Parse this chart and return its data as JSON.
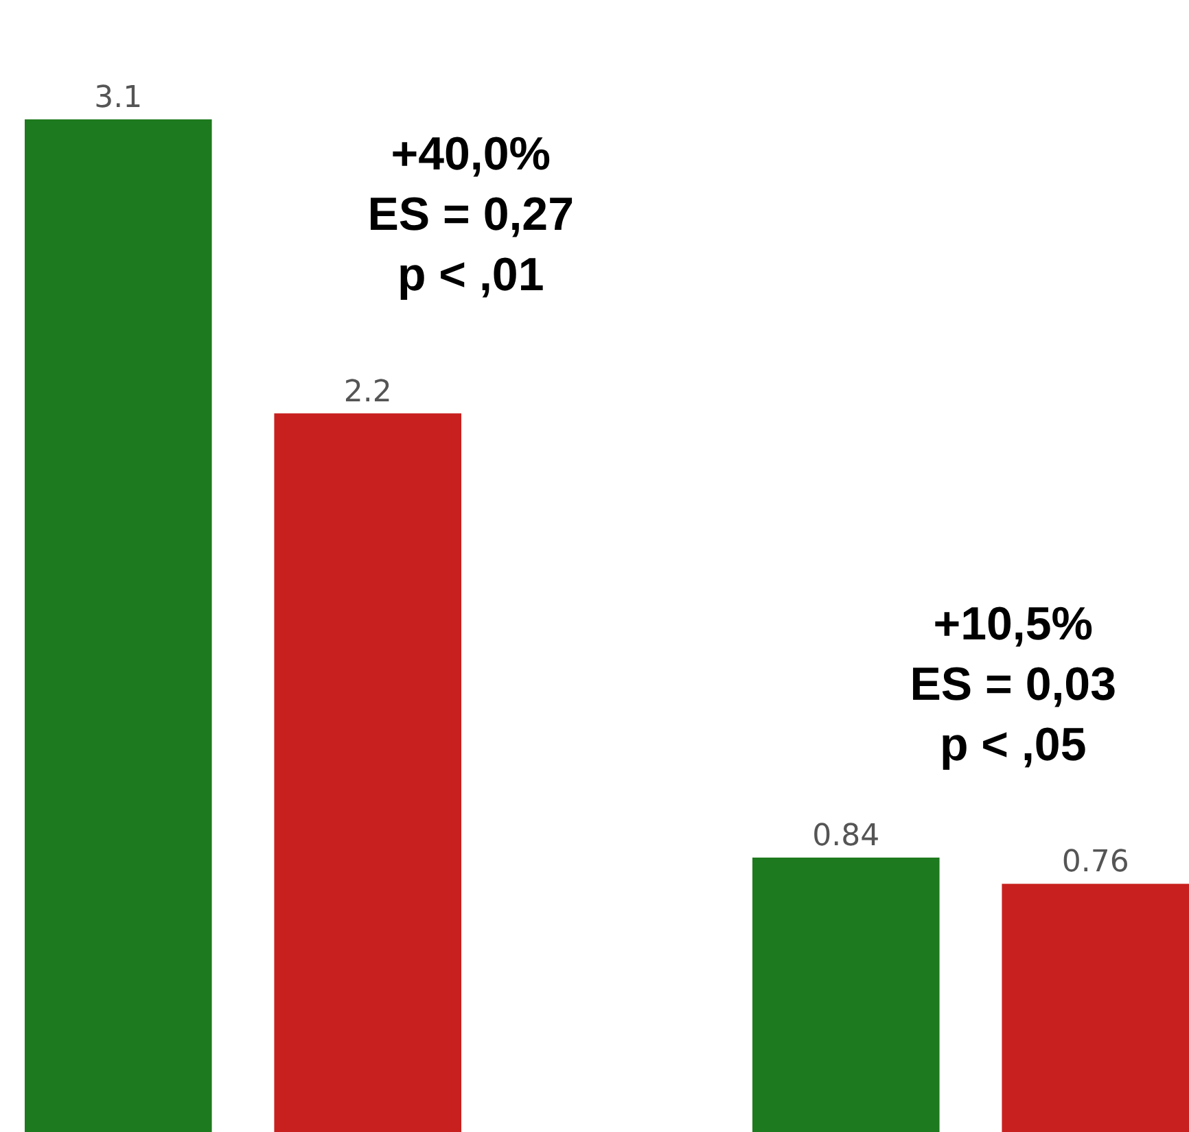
{
  "chart_data": {
    "type": "bar",
    "categories": [
      null,
      null,
      null,
      null
    ],
    "values": [
      3.1,
      2.2,
      0.84,
      0.76
    ],
    "colors": [
      "#1e7a1e",
      "#c8201e",
      "#1e7a1e",
      "#c8201e"
    ],
    "data_labels": true,
    "tick_labels": false,
    "annotations": [
      "+40,0%\nES = 0,27\np < ,01",
      "+10,5%\nES = 0,03\np < ,05"
    ]
  }
}
